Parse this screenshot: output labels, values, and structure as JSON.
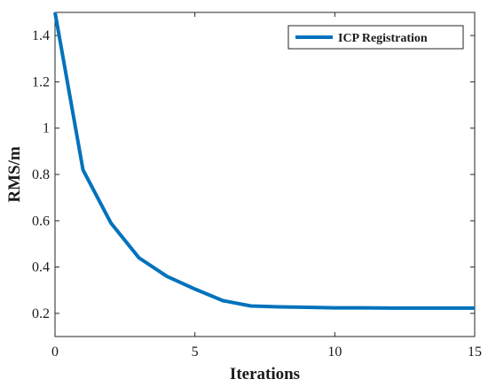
{
  "chart_data": {
    "type": "line",
    "xlabel": "Iterations",
    "ylabel": "RMS/m",
    "xlim": [
      0,
      15
    ],
    "ylim": [
      0.1,
      1.5
    ],
    "x_ticks": [
      "0",
      "5",
      "10",
      "15"
    ],
    "y_ticks": [
      "0.2",
      "0.4",
      "0.6",
      "0.8",
      "1",
      "1.2",
      "1.4"
    ],
    "grid": false,
    "legend_position": "top-right",
    "series": [
      {
        "name": "ICP Registration",
        "color": "#0072BD",
        "x": [
          0,
          1,
          2,
          3,
          4,
          5,
          6,
          7,
          8,
          9,
          10,
          11,
          12,
          13,
          14,
          15
        ],
        "y": [
          1.5,
          0.82,
          0.59,
          0.44,
          0.36,
          0.305,
          0.255,
          0.232,
          0.228,
          0.226,
          0.224,
          0.224,
          0.223,
          0.223,
          0.223,
          0.223
        ]
      }
    ]
  }
}
